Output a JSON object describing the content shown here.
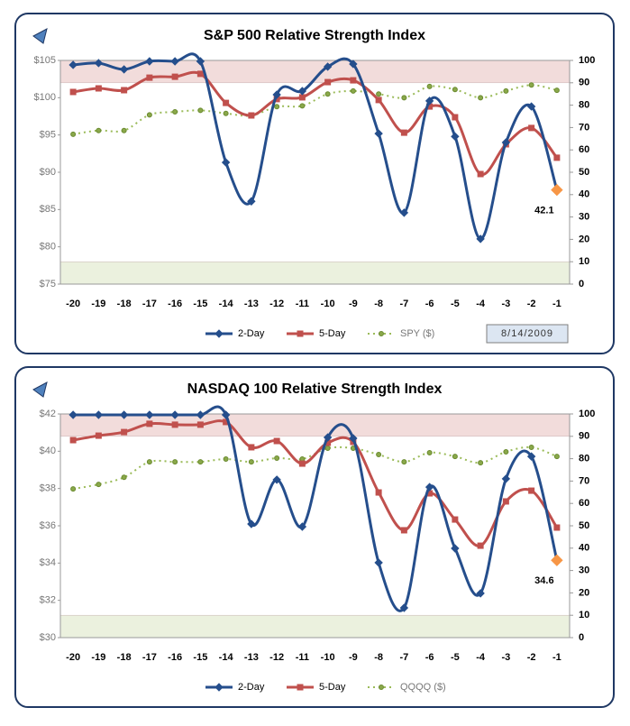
{
  "chart_data": [
    {
      "type": "line",
      "title": "S&P 500 Relative Strength Index",
      "categories": [
        "-20",
        "-19",
        "-18",
        "-17",
        "-16",
        "-15",
        "-14",
        "-13",
        "-12",
        "-11",
        "-10",
        "-9",
        "-8",
        "-7",
        "-6",
        "-5",
        "-4",
        "-3",
        "-2",
        "-1"
      ],
      "ylim": [
        75,
        105
      ],
      "yticks": [
        {
          "value": 75,
          "label": "$75"
        },
        {
          "value": 80,
          "label": "$80"
        },
        {
          "value": 85,
          "label": "$85"
        },
        {
          "value": 90,
          "label": "$90"
        },
        {
          "value": 95,
          "label": "$95"
        },
        {
          "value": 100,
          "label": "$100"
        },
        {
          "value": 105,
          "label": "$105"
        }
      ],
      "y2lim": [
        0,
        100
      ],
      "y2ticks": [
        0,
        10,
        20,
        30,
        40,
        50,
        60,
        70,
        80,
        90,
        100
      ],
      "bands": [
        {
          "from": 90,
          "to": 100,
          "color": "#f2dcdb"
        },
        {
          "from": 0,
          "to": 10,
          "color": "#ebf1de"
        }
      ],
      "series": [
        {
          "name": "2-Day",
          "color": "#254e8c",
          "axis": "y2",
          "marker": "diamond",
          "values": [
            98,
            98.8,
            96,
            99.6,
            99.6,
            99.6,
            54.4,
            37,
            84.7,
            86.3,
            97.2,
            98.4,
            67.3,
            31.9,
            81.9,
            66,
            20.2,
            63.3,
            79.4,
            42.1
          ]
        },
        {
          "name": "5-Day",
          "color": "#c0504d",
          "axis": "y2",
          "marker": "square",
          "values": [
            85.9,
            87.5,
            86.7,
            92.3,
            92.7,
            94,
            81,
            75.4,
            82.7,
            83.5,
            90.3,
            91.1,
            82.3,
            67.7,
            79.4,
            74.6,
            49.2,
            62.5,
            69.8,
            56.5
          ]
        },
        {
          "name": "SPY ($)",
          "color": "#9bbb59",
          "axis": "y",
          "marker": "circle",
          "dotted": true,
          "values": [
            95.1,
            95.6,
            95.6,
            97.7,
            98.1,
            98.3,
            97.9,
            97.6,
            98.8,
            98.9,
            100.5,
            100.9,
            100.5,
            100,
            101.5,
            101.1,
            100,
            100.9,
            101.7,
            101
          ]
        }
      ],
      "last_point_color": "#f79646",
      "annotation": "42.1",
      "date": "8/14/2009"
    },
    {
      "type": "line",
      "title": "NASDAQ 100 Relative Strength Index",
      "categories": [
        "-20",
        "-19",
        "-18",
        "-17",
        "-16",
        "-15",
        "-14",
        "-13",
        "-12",
        "-11",
        "-10",
        "-9",
        "-8",
        "-7",
        "-6",
        "-5",
        "-4",
        "-3",
        "-2",
        "-1"
      ],
      "ylim": [
        30,
        42
      ],
      "yticks": [
        {
          "value": 30,
          "label": "$30"
        },
        {
          "value": 32,
          "label": "$32"
        },
        {
          "value": 34,
          "label": "$34"
        },
        {
          "value": 36,
          "label": "$36"
        },
        {
          "value": 38,
          "label": "$38"
        },
        {
          "value": 40,
          "label": "$40"
        },
        {
          "value": 42,
          "label": "$42"
        }
      ],
      "y2lim": [
        0,
        100
      ],
      "y2ticks": [
        0,
        10,
        20,
        30,
        40,
        50,
        60,
        70,
        80,
        90,
        100
      ],
      "bands": [
        {
          "from": 90,
          "to": 100,
          "color": "#f2dcdb"
        },
        {
          "from": 0,
          "to": 10,
          "color": "#ebf1de"
        }
      ],
      "series": [
        {
          "name": "2-Day",
          "color": "#254e8c",
          "axis": "y2",
          "marker": "diamond",
          "values": [
            99.6,
            99.6,
            99.6,
            99.6,
            99.6,
            99.6,
            99.6,
            50.8,
            70.6,
            49.6,
            89.5,
            89.1,
            33.5,
            13.3,
            67.3,
            39.9,
            19.8,
            71,
            81,
            34.6
          ]
        },
        {
          "name": "5-Day",
          "color": "#c0504d",
          "axis": "y2",
          "marker": "square",
          "values": [
            88.3,
            90.3,
            91.9,
            95.6,
            95.2,
            95.2,
            96.4,
            85.1,
            87.9,
            77.8,
            87.1,
            87.5,
            64.9,
            48,
            64.5,
            52.8,
            41.1,
            60.9,
            65.7,
            49.2
          ]
        },
        {
          "name": "QQQQ ($)",
          "color": "#9bbb59",
          "axis": "y",
          "marker": "circle",
          "dotted": true,
          "values": [
            37.98,
            38.22,
            38.6,
            39.43,
            39.43,
            39.43,
            39.58,
            39.43,
            39.63,
            39.58,
            40.16,
            40.16,
            39.82,
            39.43,
            39.92,
            39.72,
            39.38,
            39.97,
            40.21,
            39.72
          ]
        }
      ],
      "last_point_color": "#f79646",
      "annotation": "34.6"
    }
  ]
}
